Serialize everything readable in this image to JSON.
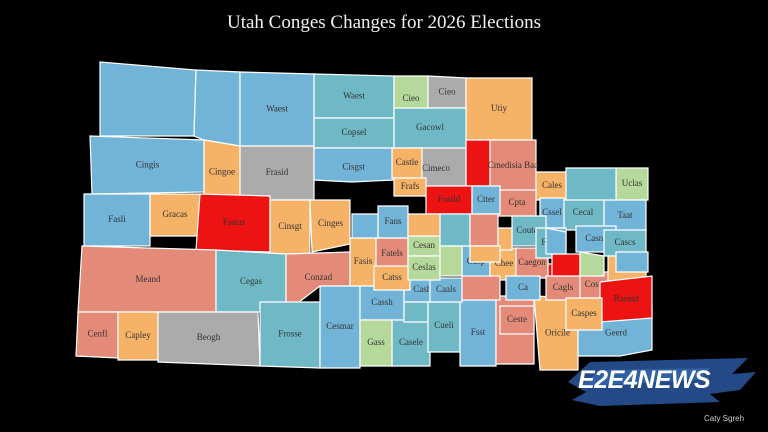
{
  "title": "Utah Conges Changes for 2026 Elections",
  "logo": {
    "text": "E2E4NEWS"
  },
  "caption": "Caty Sgreh",
  "palette": {
    "blue": "#72b4d8",
    "teal": "#6fb9c6",
    "orange": "#f6b267",
    "salmon": "#e38a78",
    "gray": "#ababab",
    "red": "#ee1313",
    "green": "#b5d99b"
  },
  "counties": [
    {
      "label": "",
      "color": "blue"
    },
    {
      "label": "",
      "color": "blue"
    },
    {
      "label": "Waest",
      "color": "blue"
    },
    {
      "label": "Waest",
      "color": "teal"
    },
    {
      "label": "Cieo",
      "color": "green"
    },
    {
      "label": "Cieo",
      "color": "gray"
    },
    {
      "label": "Utiy",
      "color": "orange"
    },
    {
      "label": "Cingis",
      "color": "blue"
    },
    {
      "label": "Cingoe",
      "color": "orange"
    },
    {
      "label": "Frasid",
      "color": "gray"
    },
    {
      "label": "Copsel",
      "color": "teal"
    },
    {
      "label": "Gacowl",
      "color": "teal"
    },
    {
      "label": "Cisgst",
      "color": "blue"
    },
    {
      "label": "",
      "color": "red"
    },
    {
      "label": "Cmedisia Baa",
      "color": "salmon"
    },
    {
      "label": "Fasli",
      "color": "blue"
    },
    {
      "label": "Gracas",
      "color": "orange"
    },
    {
      "label": "Fastas",
      "color": "red"
    },
    {
      "label": "Cinsgt",
      "color": "orange"
    },
    {
      "label": "Cinges",
      "color": "orange"
    },
    {
      "label": "Meand",
      "color": "salmon"
    },
    {
      "label": "Cegas",
      "color": "teal"
    },
    {
      "label": "Conzad",
      "color": "salmon"
    },
    {
      "label": "Cenfl",
      "color": "salmon"
    },
    {
      "label": "Capley",
      "color": "orange"
    },
    {
      "label": "Beogh",
      "color": "gray"
    },
    {
      "label": "Frosse",
      "color": "teal"
    },
    {
      "label": "Cesmar",
      "color": "blue"
    },
    {
      "label": "Fasis",
      "color": "orange"
    },
    {
      "label": "Cassh",
      "color": "blue"
    },
    {
      "label": "Casele",
      "color": "teal"
    },
    {
      "label": "Gass",
      "color": "green"
    },
    {
      "label": "Cueli",
      "color": "teal"
    },
    {
      "label": "Fsst",
      "color": "blue"
    },
    {
      "label": "Cnrasi",
      "color": "salmon"
    },
    {
      "label": "Oricile",
      "color": "orange"
    },
    {
      "label": "Geerd",
      "color": "blue"
    },
    {
      "label": "Fatels",
      "color": "salmon"
    },
    {
      "label": "Cimeco",
      "color": "gray"
    },
    {
      "label": "Fosild",
      "color": "red"
    },
    {
      "label": "Castle",
      "color": "orange"
    },
    {
      "label": "Frafs",
      "color": "orange"
    },
    {
      "label": "Uclas",
      "color": "green"
    },
    {
      "label": "Taat",
      "color": "blue"
    },
    {
      "label": "Cecal",
      "color": "teal"
    },
    {
      "label": "Cales",
      "color": "orange"
    },
    {
      "label": "Cssel",
      "color": "blue"
    },
    {
      "label": "Casns",
      "color": "blue"
    },
    {
      "label": "Cpta",
      "color": "salmon"
    },
    {
      "label": "Coutos",
      "color": "teal"
    },
    {
      "label": "Ctter",
      "color": "blue"
    },
    {
      "label": "Fans",
      "color": "blue"
    },
    {
      "label": "Cesan",
      "color": "green"
    },
    {
      "label": "Cusp",
      "color": "blue"
    },
    {
      "label": "Chee",
      "color": "orange"
    },
    {
      "label": "Caegon",
      "color": "salmon"
    },
    {
      "label": "Cashs",
      "color": "blue"
    },
    {
      "label": "Catss",
      "color": "orange"
    },
    {
      "label": "Frelp",
      "color": "red"
    },
    {
      "label": "Fosle",
      "color": "teal"
    },
    {
      "label": "Cascs",
      "color": "teal"
    },
    {
      "label": "Cosigs",
      "color": "salmon"
    },
    {
      "label": "Caals",
      "color": "blue"
    },
    {
      "label": "Ceslas",
      "color": "green"
    },
    {
      "label": "Cioz",
      "color": "orange"
    },
    {
      "label": "Rasind",
      "color": "red"
    },
    {
      "label": "Cagls",
      "color": "salmon"
    },
    {
      "label": "Caspes",
      "color": "orange"
    },
    {
      "label": "Ceste",
      "color": "salmon"
    },
    {
      "label": "Ca",
      "color": "blue"
    },
    {
      "label": "",
      "color": "teal"
    },
    {
      "label": "",
      "color": "salmon"
    },
    {
      "label": "",
      "color": "green"
    },
    {
      "label": "",
      "color": "orange"
    },
    {
      "label": "",
      "color": "blue"
    },
    {
      "label": "",
      "color": "teal"
    },
    {
      "label": "",
      "color": "red"
    },
    {
      "label": "",
      "color": "orange"
    },
    {
      "label": "",
      "color": "blue"
    },
    {
      "label": "",
      "color": "green"
    },
    {
      "label": "",
      "color": "salmon"
    },
    {
      "label": "",
      "color": "teal"
    },
    {
      "label": "",
      "color": "blue"
    },
    {
      "label": "",
      "color": "orange"
    }
  ]
}
